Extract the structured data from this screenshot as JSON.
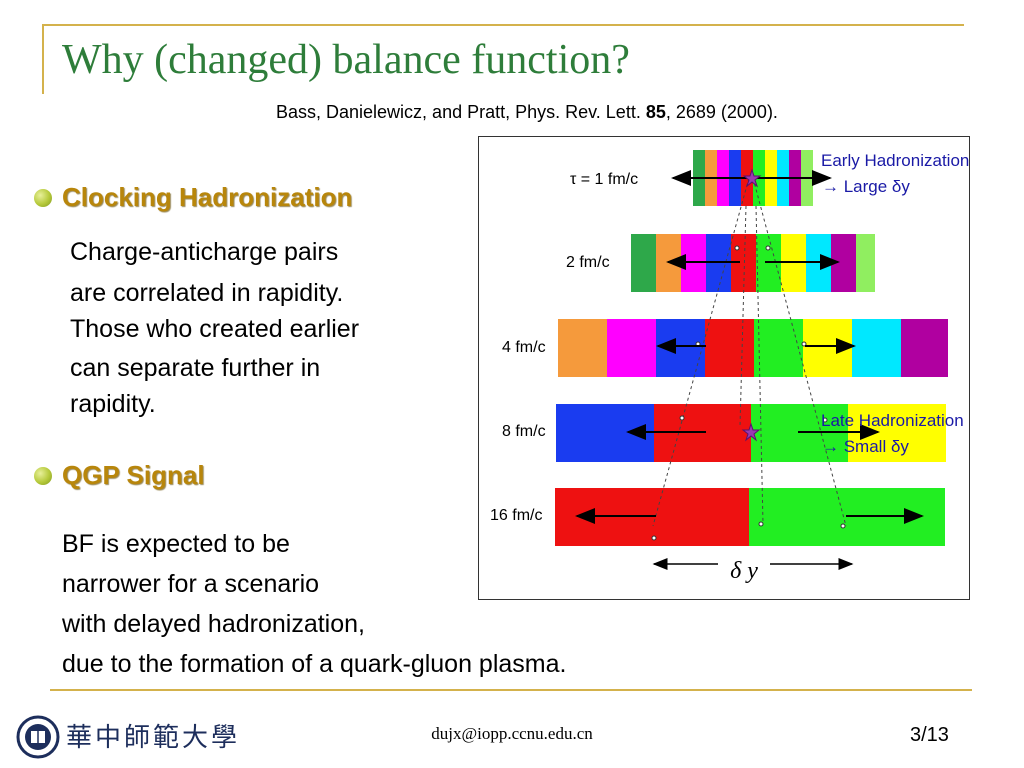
{
  "slide": {
    "title": "Why (changed) balance function?",
    "citation": {
      "text_before": "Bass, Danielewicz, and Pratt, Phys. Rev. Lett. ",
      "volume": "85",
      "text_after": ", 2689 (2000)."
    },
    "bullets": [
      {
        "heading": "Clocking Hadronization",
        "lines": [
          "Charge-anticharge pairs",
          "are correlated in rapidity.",
          "Those who created earlier",
          "can separate further in",
          "rapidity."
        ]
      },
      {
        "heading": "QGP Signal",
        "lines": [
          "BF is expected to be",
          "narrower for a scenario",
          "with delayed hadronization,",
          "due to the formation of  a quark-gluon plasma."
        ]
      }
    ],
    "figure": {
      "time_labels": [
        "τ = 1 fm/c",
        "2 fm/c",
        "4 fm/c",
        "8 fm/c",
        "16 fm/c"
      ],
      "axis_label": "δ y",
      "early_note": [
        "Early Hadronization",
        "→ Large δy"
      ],
      "late_note": [
        "Late Hadronization",
        "→ Small δy"
      ]
    },
    "footer": {
      "email": "dujx@iopp.ccnu.edu.cn",
      "page": "3/13",
      "logo_text": "華中師範大學"
    },
    "colors": {
      "title": "#2e7d3a",
      "accent_gold": "#d4b24c",
      "bullet_heading": "#b8860b",
      "annotation_blue": "#1a1aa6"
    }
  }
}
